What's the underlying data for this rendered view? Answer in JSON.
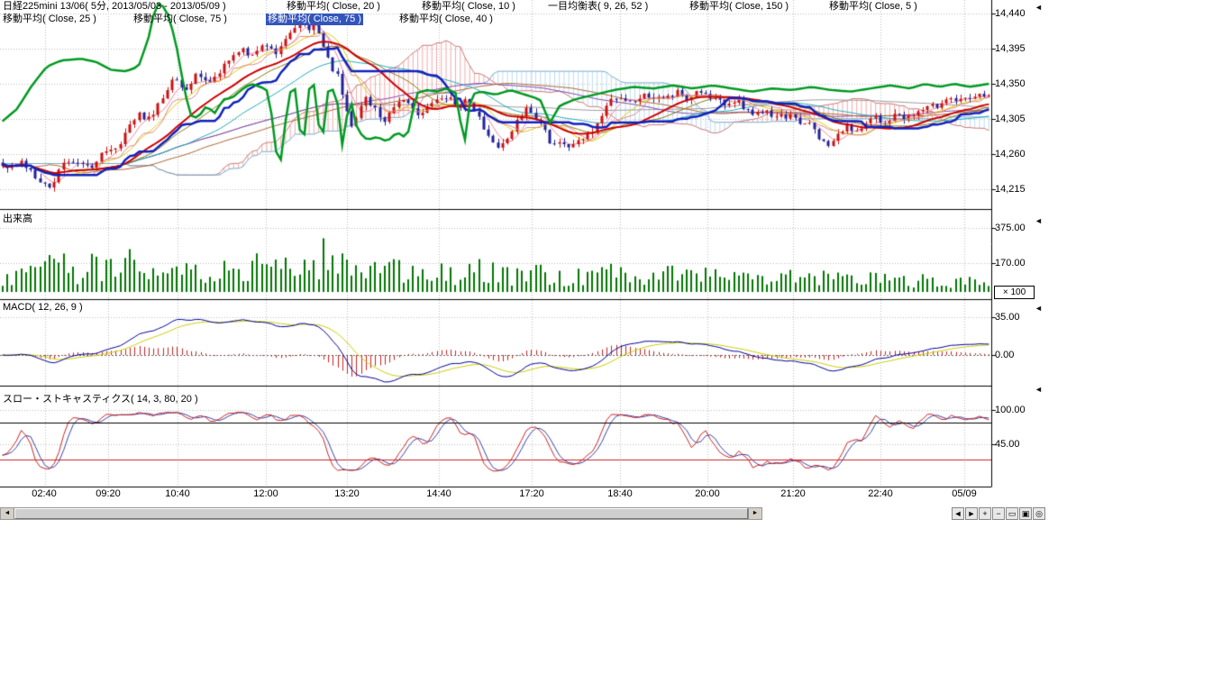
{
  "header": {
    "row1": [
      {
        "label": "日経225mini 13/06( 5分, 2013/05/03 - 2013/05/09 )"
      },
      {
        "label": "移動平均( Close, 20 )"
      },
      {
        "label": "移動平均( Close, 10 )"
      },
      {
        "label": "一目均衡表( 9, 26, 52 )"
      },
      {
        "label": "移動平均( Close, 150 )"
      },
      {
        "label": "移動平均( Close, 5 )"
      }
    ],
    "row2": [
      {
        "label": "移動平均( Close, 25 )",
        "highlighted": false
      },
      {
        "label": "移動平均( Close, 75 )",
        "highlighted": false
      },
      {
        "label": "移動平均( Close, 75 )",
        "highlighted": true
      },
      {
        "label": "移動平均( Close, 40 )",
        "highlighted": false
      }
    ]
  },
  "panels": {
    "volume": {
      "title": "出来高",
      "multiplier": "× 100"
    },
    "macd": {
      "title": "MACD( 12, 26, 9 )"
    },
    "stoch": {
      "title": "スロー・ストキャスティクス( 14, 3, 80, 20 )"
    }
  },
  "icons": {
    "scrollbar_left": "◄",
    "scrollbar_right": "►",
    "panel_scale": "◄"
  },
  "toolbar": {
    "buttons": [
      {
        "name": "scroll-left",
        "glyph": "◄"
      },
      {
        "name": "scroll-right",
        "glyph": "►"
      },
      {
        "name": "zoom-in",
        "glyph": "+"
      },
      {
        "name": "zoom-out",
        "glyph": "−"
      },
      {
        "name": "range",
        "glyph": "▭"
      },
      {
        "name": "grid",
        "glyph": "▣"
      },
      {
        "name": "target",
        "glyph": "◎"
      }
    ]
  },
  "chart_data": {
    "type": "candlestick+indicators",
    "symbol": "日経225mini 13/06",
    "interval": "5分",
    "date_range": "2013/05/03 - 2013/05/09",
    "n_candles": 210,
    "price_gridlines": [
      {
        "label": "14,440",
        "value": 14440
      },
      {
        "label": "14,395",
        "value": 14395
      },
      {
        "label": "14,350",
        "value": 14350
      },
      {
        "label": "14,305",
        "value": 14305
      },
      {
        "label": "14,260",
        "value": 14260
      },
      {
        "label": "14,215",
        "value": 14215
      }
    ],
    "volume_axis": [
      {
        "label": "375.00",
        "value": 375
      },
      {
        "label": "170.00",
        "value": 170
      }
    ],
    "macd_axis": [
      {
        "label": "35.00",
        "value": 35
      },
      {
        "label": "0.00",
        "value": 0
      }
    ],
    "stoch_axis": [
      {
        "label": "100.00",
        "value": 100
      },
      {
        "label": "45.00",
        "value": 45
      }
    ],
    "stoch_ref_lines": [
      80,
      20
    ],
    "time_ticks": [
      {
        "label": "02:40",
        "x": 0.045
      },
      {
        "label": "09:20",
        "x": 0.109
      },
      {
        "label": "10:40",
        "x": 0.179
      },
      {
        "label": "12:00",
        "x": 0.268
      },
      {
        "label": "13:20",
        "x": 0.35
      },
      {
        "label": "14:40",
        "x": 0.443
      },
      {
        "label": "17:20",
        "x": 0.536
      },
      {
        "label": "18:40",
        "x": 0.625
      },
      {
        "label": "20:00",
        "x": 0.714
      },
      {
        "label": "21:20",
        "x": 0.8
      },
      {
        "label": "22:40",
        "x": 0.888
      },
      {
        "label": "05/09",
        "x": 0.973
      }
    ],
    "indicator_params": {
      "moving_averages": [
        20,
        10,
        150,
        5,
        25,
        75,
        75,
        40
      ],
      "ichimoku": [
        9,
        26,
        52
      ],
      "macd": [
        12,
        26,
        9
      ],
      "slow_stochastics": [
        14,
        3,
        80,
        20
      ]
    },
    "close_path": [
      [
        0,
        14245
      ],
      [
        0.02,
        14250
      ],
      [
        0.035,
        14230
      ],
      [
        0.05,
        14220
      ],
      [
        0.06,
        14248
      ],
      [
        0.075,
        14252
      ],
      [
        0.09,
        14242
      ],
      [
        0.1,
        14258
      ],
      [
        0.115,
        14268
      ],
      [
        0.13,
        14295
      ],
      [
        0.14,
        14312
      ],
      [
        0.15,
        14302
      ],
      [
        0.162,
        14332
      ],
      [
        0.175,
        14356
      ],
      [
        0.185,
        14342
      ],
      [
        0.198,
        14362
      ],
      [
        0.21,
        14352
      ],
      [
        0.225,
        14372
      ],
      [
        0.24,
        14396
      ],
      [
        0.252,
        14386
      ],
      [
        0.265,
        14398
      ],
      [
        0.278,
        14392
      ],
      [
        0.292,
        14418
      ],
      [
        0.303,
        14436
      ],
      [
        0.312,
        14412
      ],
      [
        0.318,
        14428
      ],
      [
        0.33,
        14382
      ],
      [
        0.34,
        14358
      ],
      [
        0.347,
        14330
      ],
      [
        0.353,
        14292
      ],
      [
        0.36,
        14312
      ],
      [
        0.368,
        14330
      ],
      [
        0.378,
        14320
      ],
      [
        0.388,
        14302
      ],
      [
        0.398,
        14322
      ],
      [
        0.408,
        14332
      ],
      [
        0.418,
        14312
      ],
      [
        0.428,
        14316
      ],
      [
        0.44,
        14326
      ],
      [
        0.452,
        14332
      ],
      [
        0.462,
        14320
      ],
      [
        0.472,
        14330
      ],
      [
        0.48,
        14314
      ],
      [
        0.487,
        14298
      ],
      [
        0.495,
        14278
      ],
      [
        0.505,
        14270
      ],
      [
        0.515,
        14288
      ],
      [
        0.523,
        14305
      ],
      [
        0.53,
        14318
      ],
      [
        0.54,
        14308
      ],
      [
        0.55,
        14288
      ],
      [
        0.558,
        14272
      ],
      [
        0.568,
        14276
      ],
      [
        0.578,
        14270
      ],
      [
        0.588,
        14282
      ],
      [
        0.598,
        14292
      ],
      [
        0.608,
        14312
      ],
      [
        0.618,
        14330
      ],
      [
        0.628,
        14336
      ],
      [
        0.638,
        14326
      ],
      [
        0.648,
        14332
      ],
      [
        0.66,
        14336
      ],
      [
        0.672,
        14330
      ],
      [
        0.683,
        14340
      ],
      [
        0.695,
        14332
      ],
      [
        0.707,
        14340
      ],
      [
        0.718,
        14334
      ],
      [
        0.73,
        14326
      ],
      [
        0.742,
        14330
      ],
      [
        0.753,
        14320
      ],
      [
        0.764,
        14312
      ],
      [
        0.775,
        14316
      ],
      [
        0.786,
        14306
      ],
      [
        0.797,
        14310
      ],
      [
        0.808,
        14298
      ],
      [
        0.818,
        14302
      ],
      [
        0.828,
        14282
      ],
      [
        0.836,
        14272
      ],
      [
        0.846,
        14286
      ],
      [
        0.856,
        14296
      ],
      [
        0.866,
        14290
      ],
      [
        0.876,
        14300
      ],
      [
        0.886,
        14306
      ],
      [
        0.896,
        14300
      ],
      [
        0.906,
        14310
      ],
      [
        0.916,
        14306
      ],
      [
        0.926,
        14312
      ],
      [
        0.936,
        14316
      ],
      [
        0.946,
        14322
      ],
      [
        0.956,
        14326
      ],
      [
        0.966,
        14330
      ],
      [
        0.978,
        14332
      ],
      [
        1,
        14336
      ]
    ],
    "overlay_path": [
      [
        0,
        14302
      ],
      [
        0.015,
        14318
      ],
      [
        0.03,
        14348
      ],
      [
        0.045,
        14372
      ],
      [
        0.06,
        14380
      ],
      [
        0.08,
        14382
      ],
      [
        0.095,
        14378
      ],
      [
        0.11,
        14368
      ],
      [
        0.125,
        14366
      ],
      [
        0.138,
        14372
      ],
      [
        0.148,
        14408
      ],
      [
        0.155,
        14448
      ],
      [
        0.16,
        14455
      ],
      [
        0.168,
        14438
      ],
      [
        0.175,
        14408
      ],
      [
        0.182,
        14360
      ],
      [
        0.19,
        14310
      ],
      [
        0.198,
        14306
      ],
      [
        0.207,
        14322
      ],
      [
        0.215,
        14312
      ],
      [
        0.224,
        14330
      ],
      [
        0.233,
        14332
      ],
      [
        0.242,
        14342
      ],
      [
        0.252,
        14350
      ],
      [
        0.262,
        14346
      ],
      [
        0.27,
        14340
      ],
      [
        0.278,
        14258
      ],
      [
        0.283,
        14252
      ],
      [
        0.29,
        14338
      ],
      [
        0.298,
        14344
      ],
      [
        0.304,
        14252
      ],
      [
        0.31,
        14342
      ],
      [
        0.317,
        14350
      ],
      [
        0.323,
        14262
      ],
      [
        0.33,
        14340
      ],
      [
        0.338,
        14344
      ],
      [
        0.345,
        14266
      ],
      [
        0.352,
        14336
      ],
      [
        0.36,
        14290
      ],
      [
        0.37,
        14278
      ],
      [
        0.38,
        14282
      ],
      [
        0.39,
        14276
      ],
      [
        0.4,
        14288
      ],
      [
        0.41,
        14280
      ],
      [
        0.42,
        14338
      ],
      [
        0.43,
        14342
      ],
      [
        0.44,
        14340
      ],
      [
        0.45,
        14344
      ],
      [
        0.46,
        14338
      ],
      [
        0.468,
        14270
      ],
      [
        0.475,
        14336
      ],
      [
        0.485,
        14340
      ],
      [
        0.5,
        14336
      ],
      [
        0.515,
        14342
      ],
      [
        0.53,
        14336
      ],
      [
        0.545,
        14330
      ],
      [
        0.555,
        14300
      ],
      [
        0.565,
        14322
      ],
      [
        0.58,
        14330
      ],
      [
        0.6,
        14336
      ],
      [
        0.62,
        14342
      ],
      [
        0.64,
        14346
      ],
      [
        0.66,
        14344
      ],
      [
        0.68,
        14348
      ],
      [
        0.7,
        14344
      ],
      [
        0.72,
        14348
      ],
      [
        0.74,
        14344
      ],
      [
        0.76,
        14340
      ],
      [
        0.78,
        14344
      ],
      [
        0.8,
        14342
      ],
      [
        0.82,
        14346
      ],
      [
        0.84,
        14342
      ],
      [
        0.86,
        14340
      ],
      [
        0.88,
        14344
      ],
      [
        0.9,
        14348
      ],
      [
        0.92,
        14344
      ],
      [
        0.935,
        14350
      ],
      [
        0.95,
        14346
      ],
      [
        0.965,
        14350
      ],
      [
        0.98,
        14346
      ],
      [
        1,
        14350
      ]
    ],
    "volume_envelope": [
      [
        0,
        110
      ],
      [
        0.03,
        170
      ],
      [
        0.05,
        300
      ],
      [
        0.07,
        190
      ],
      [
        0.09,
        230
      ],
      [
        0.11,
        200
      ],
      [
        0.13,
        260
      ],
      [
        0.15,
        230
      ],
      [
        0.17,
        260
      ],
      [
        0.19,
        180
      ],
      [
        0.21,
        170
      ],
      [
        0.23,
        200
      ],
      [
        0.25,
        220
      ],
      [
        0.27,
        250
      ],
      [
        0.29,
        230
      ],
      [
        0.31,
        240
      ],
      [
        0.325,
        330
      ],
      [
        0.335,
        380
      ],
      [
        0.345,
        300
      ],
      [
        0.36,
        220
      ],
      [
        0.38,
        180
      ],
      [
        0.4,
        200
      ],
      [
        0.42,
        230
      ],
      [
        0.44,
        200
      ],
      [
        0.46,
        170
      ],
      [
        0.48,
        240
      ],
      [
        0.5,
        190
      ],
      [
        0.52,
        150
      ],
      [
        0.54,
        160
      ],
      [
        0.56,
        170
      ],
      [
        0.58,
        150
      ],
      [
        0.6,
        160
      ],
      [
        0.62,
        170
      ],
      [
        0.64,
        150
      ],
      [
        0.66,
        160
      ],
      [
        0.68,
        180
      ],
      [
        0.7,
        160
      ],
      [
        0.72,
        140
      ],
      [
        0.74,
        150
      ],
      [
        0.76,
        130
      ],
      [
        0.78,
        140
      ],
      [
        0.8,
        130
      ],
      [
        0.82,
        140
      ],
      [
        0.84,
        120
      ],
      [
        0.86,
        110
      ],
      [
        0.88,
        120
      ],
      [
        0.9,
        110
      ],
      [
        0.92,
        100
      ],
      [
        0.94,
        110
      ],
      [
        0.96,
        95
      ],
      [
        0.98,
        100
      ],
      [
        1,
        95
      ]
    ],
    "colors": {
      "up": "#cc1111",
      "down": "#222299",
      "volume": "#007700",
      "overlay": "#009922",
      "kijun": "#1122bb",
      "ma20": "#cc0000",
      "ma10": "#ddcc00",
      "ma150": "#999999",
      "ma5": "#ee8899",
      "ma25": "#887711",
      "ma40": "#22aabb",
      "ma75": "#8844aa",
      "ma75b": "#aa6633",
      "tenkan": "#dd8888",
      "spanA_line": "#cc7777",
      "spanB_line": "#77aacc",
      "cloud_up": "#f2aaaa",
      "cloud_down": "#bcdcf0",
      "macd_line": "#000099",
      "macd_signal": "#cccc00",
      "macd_hist": "#cc2222",
      "stoch_k": "#cc2222",
      "stoch_d": "#3344aa",
      "grid": "#bbbbbb"
    }
  }
}
